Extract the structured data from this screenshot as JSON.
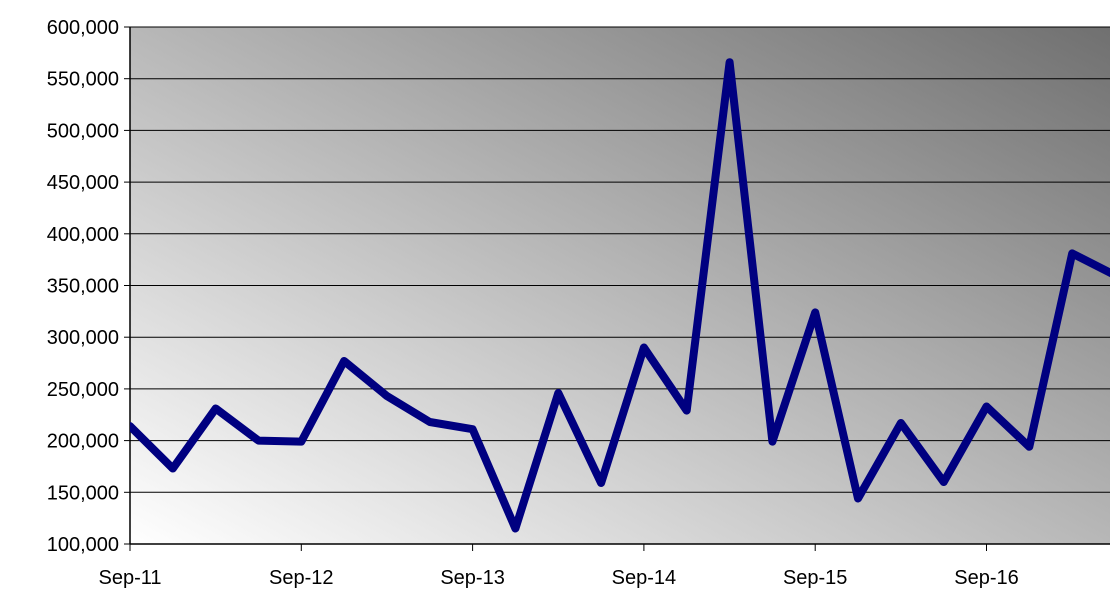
{
  "chart_data": {
    "type": "line",
    "title": "",
    "xlabel": "",
    "ylabel": "",
    "ylim": [
      100000,
      600000
    ],
    "y_ticks": [
      100000,
      150000,
      200000,
      250000,
      300000,
      350000,
      400000,
      450000,
      500000,
      550000,
      600000
    ],
    "y_tick_labels": [
      "100,000",
      "150,000",
      "200,000",
      "250,000",
      "300,000",
      "350,000",
      "400,000",
      "450,000",
      "500,000",
      "550,000",
      "600,000"
    ],
    "x_tick_labels": [
      "Sep-11",
      "Sep-12",
      "Sep-13",
      "Sep-14",
      "Sep-15",
      "Sep-16"
    ],
    "x_tick_dates": [
      "2011-09",
      "2012-09",
      "2013-09",
      "2014-09",
      "2015-09",
      "2016-09"
    ],
    "grid": "horizontal",
    "series": [
      {
        "color": "#000080",
        "points": [
          {
            "x": "2011-09",
            "y": 214000
          },
          {
            "x": "2011-12",
            "y": 173000
          },
          {
            "x": "2012-03",
            "y": 231000
          },
          {
            "x": "2012-06",
            "y": 200000
          },
          {
            "x": "2012-09",
            "y": 199000
          },
          {
            "x": "2012-12",
            "y": 277000
          },
          {
            "x": "2013-03",
            "y": 243000
          },
          {
            "x": "2013-06",
            "y": 218000
          },
          {
            "x": "2013-09",
            "y": 211000
          },
          {
            "x": "2013-12",
            "y": 115000
          },
          {
            "x": "2014-03",
            "y": 246000
          },
          {
            "x": "2014-06",
            "y": 159000
          },
          {
            "x": "2014-09",
            "y": 290000
          },
          {
            "x": "2014-12",
            "y": 229000
          },
          {
            "x": "2015-03",
            "y": 566000
          },
          {
            "x": "2015-06",
            "y": 199000
          },
          {
            "x": "2015-09",
            "y": 324000
          },
          {
            "x": "2015-12",
            "y": 144000
          },
          {
            "x": "2016-03",
            "y": 217000
          },
          {
            "x": "2016-06",
            "y": 160000
          },
          {
            "x": "2016-09",
            "y": 233000
          },
          {
            "x": "2016-12",
            "y": 194000
          },
          {
            "x": "2017-03",
            "y": 381000
          },
          {
            "x": "2017-06",
            "y": 360000
          }
        ]
      }
    ]
  }
}
